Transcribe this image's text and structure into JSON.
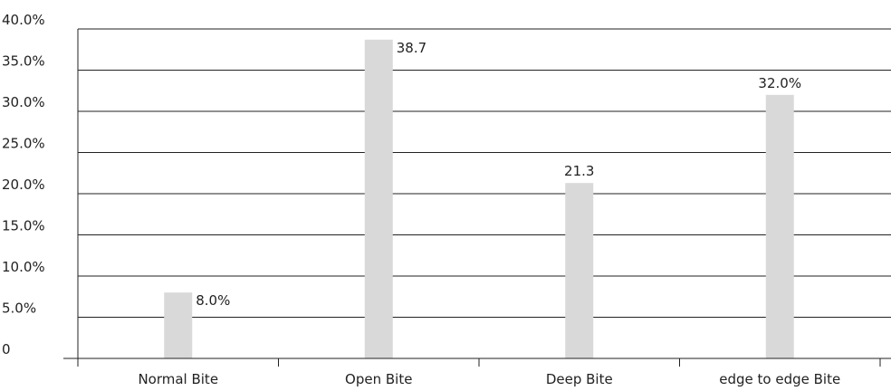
{
  "chart_data": {
    "type": "bar",
    "categories": [
      "Normal Bite",
      "Open Bite",
      "Deep Bite",
      "edge to edge Bite"
    ],
    "values": [
      8.0,
      38.7,
      21.3,
      32.0
    ],
    "data_labels": [
      "8.0%",
      "38.7",
      "21.3",
      "32.0%"
    ],
    "y_ticks": [
      {
        "value": 0,
        "label": "0"
      },
      {
        "value": 5,
        "label": "5.0%"
      },
      {
        "value": 10,
        "label": "10.0%"
      },
      {
        "value": 15,
        "label": "15.0%"
      },
      {
        "value": 20,
        "label": "20.0%"
      },
      {
        "value": 25,
        "label": "25.0%"
      },
      {
        "value": 30,
        "label": "30.0%"
      },
      {
        "value": 35,
        "label": "35.0%"
      },
      {
        "value": 40,
        "label": "40.0%"
      }
    ],
    "ylim": [
      0,
      40
    ],
    "grid": true,
    "bar_color": "#d9d9d9",
    "grid_color": "#222222",
    "title": "",
    "xlabel": "",
    "ylabel": ""
  }
}
